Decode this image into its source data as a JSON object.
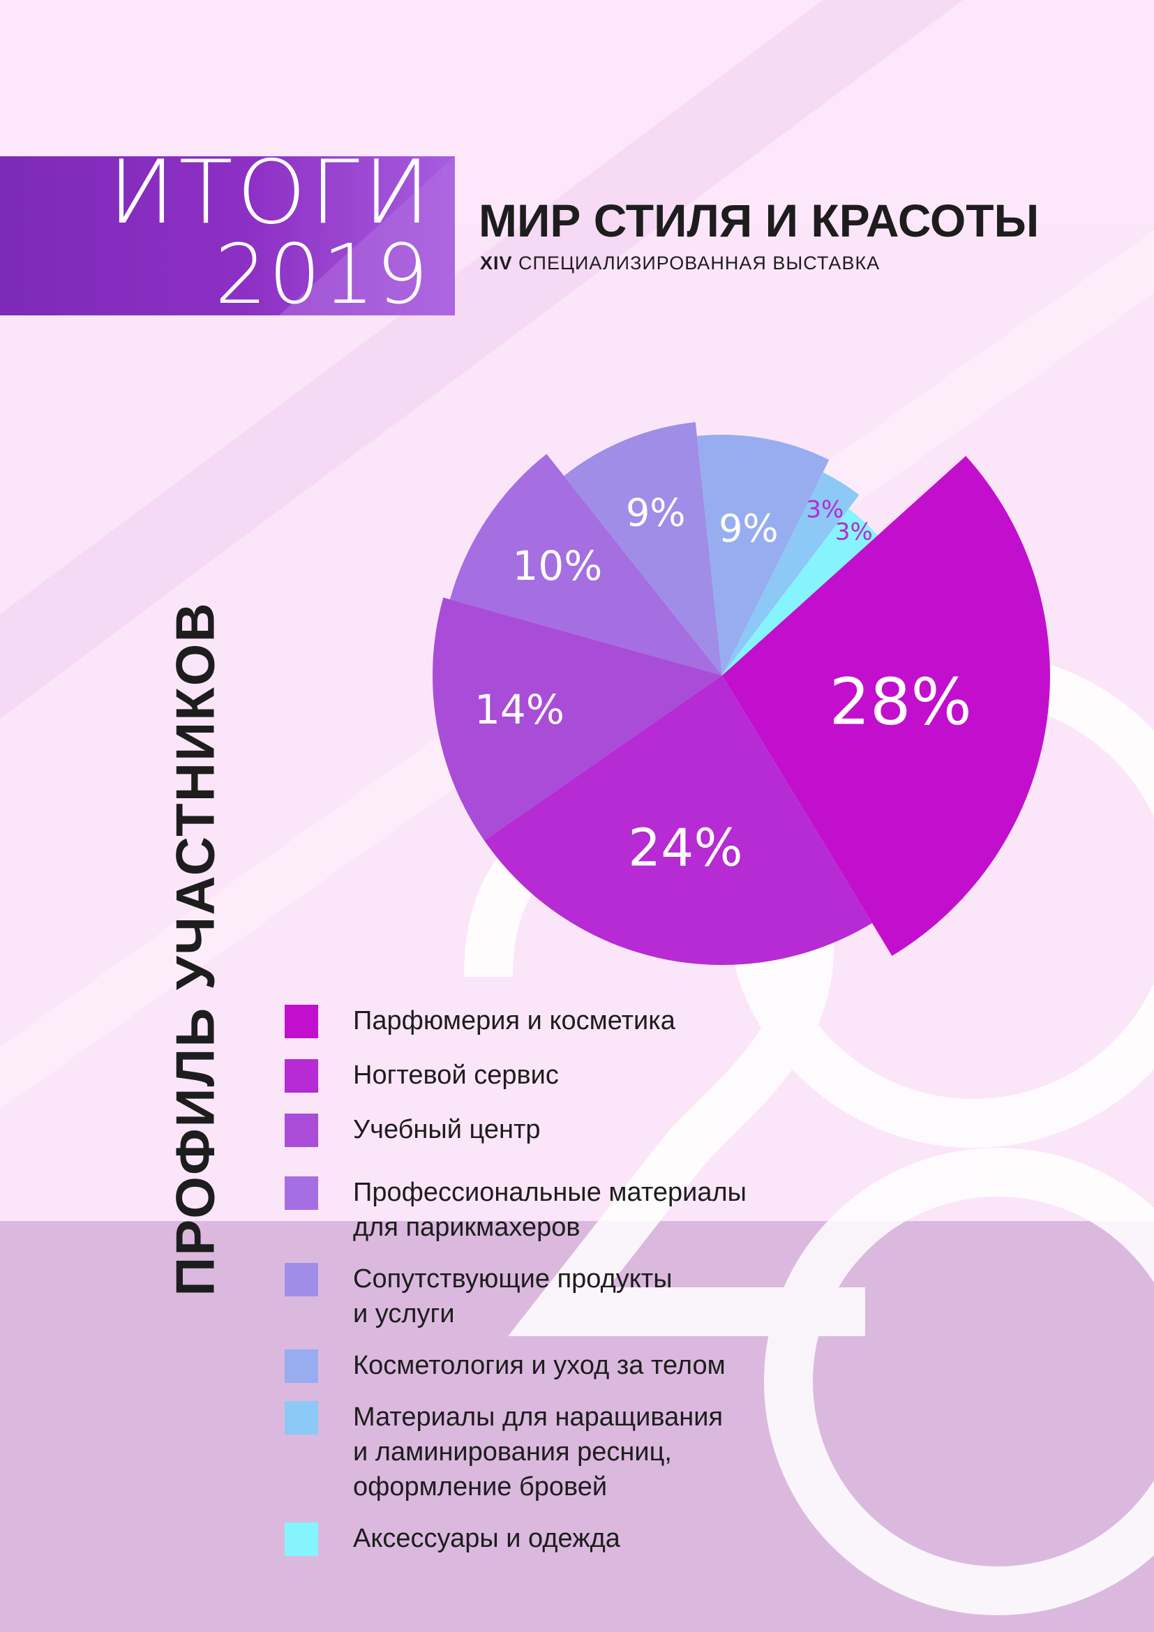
{
  "header": {
    "banner_word": "ИТОГИ",
    "banner_year": "2019",
    "title": "МИР СТИЛЯ И КРАСОТЫ",
    "subtitle_numeral": "XIV",
    "subtitle_text": "СПЕЦИАЛИЗИРОВАННАЯ ВЫСТАВКА"
  },
  "side_title": "ПРОФИЛЬ УЧАСТНИКОВ",
  "colors": {
    "page_bg": "#fbe6f9",
    "bottom_band": "#dbb9df",
    "text": "#1d1d1d",
    "banner": "#8d30c4"
  },
  "chart_data": {
    "type": "pie",
    "series": [
      {
        "label_lines": [
          "Парфюмерия и косметика"
        ],
        "value": 28,
        "display": "28%",
        "color": "#c20fcd"
      },
      {
        "label_lines": [
          "Ногтевой сервис"
        ],
        "value": 24,
        "display": "24%",
        "color": "#b62bd3"
      },
      {
        "label_lines": [
          "Учебный центр"
        ],
        "value": 14,
        "display": "14%",
        "color": "#a94cd8"
      },
      {
        "label_lines": [
          "Профессиональные материалы",
          "для парикмахеров"
        ],
        "value": 10,
        "display": "10%",
        "color": "#a56ee1"
      },
      {
        "label_lines": [
          "Сопутствующие продукты",
          "и услуги"
        ],
        "value": 9,
        "display": "9%",
        "color": "#9f8de8"
      },
      {
        "label_lines": [
          "Косметология и уход за телом"
        ],
        "value": 9,
        "display": "9%",
        "color": "#97adef"
      },
      {
        "label_lines": [
          "Материалы для наращивания",
          "и ламинирования ресниц,",
          "оформление бровей"
        ],
        "value": 3,
        "display": "3%",
        "color": "#8cc9f6"
      },
      {
        "label_lines": [
          "Аксессуары и одежда"
        ],
        "value": 3,
        "display": "3%",
        "color": "#86f4fd"
      }
    ]
  }
}
